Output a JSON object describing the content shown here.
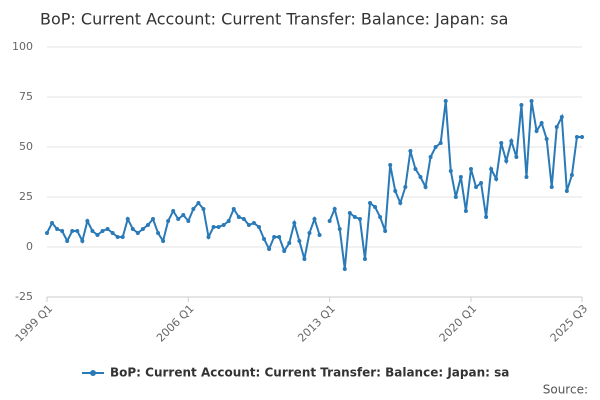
{
  "chart_data": {
    "type": "line",
    "title": "BoP: Current Account: Current Transfer: Balance: Japan: sa",
    "source": "Source:",
    "categories": [
      "1999 Q1",
      null,
      null,
      null,
      null,
      null,
      null,
      null,
      null,
      null,
      null,
      null,
      null,
      null,
      null,
      null,
      null,
      null,
      null,
      null,
      null,
      null,
      null,
      null,
      null,
      null,
      null,
      null,
      "2006 Q1",
      null,
      null,
      null,
      null,
      null,
      null,
      null,
      null,
      null,
      null,
      null,
      null,
      null,
      null,
      null,
      null,
      null,
      null,
      null,
      null,
      null,
      null,
      null,
      null,
      null,
      null,
      null,
      "2013 Q1",
      null,
      null,
      null,
      null,
      null,
      null,
      null,
      null,
      null,
      null,
      null,
      null,
      null,
      null,
      null,
      null,
      null,
      null,
      null,
      null,
      null,
      null,
      null,
      null,
      null,
      null,
      null,
      "2020 Q1",
      null,
      null,
      null,
      null,
      null,
      null,
      null,
      null,
      null,
      null,
      null,
      null,
      null,
      null,
      null,
      null,
      null,
      null,
      null,
      null,
      null,
      "2025 Q3"
    ],
    "series": [
      {
        "name": "BoP: Current Account: Current Transfer: Balance: Japan: sa",
        "color": "#2a7ab8",
        "values": [
          7,
          12,
          9,
          8,
          3,
          8,
          8,
          3,
          13,
          8,
          6,
          8,
          9,
          7,
          5,
          5,
          14,
          9,
          7,
          9,
          11,
          14,
          7,
          3,
          13,
          18,
          14,
          16,
          13,
          19,
          22,
          19,
          5,
          10,
          10,
          11,
          13,
          19,
          15,
          14,
          11,
          12,
          10,
          4,
          -1,
          5,
          5,
          -2,
          2,
          12,
          3,
          -6,
          7,
          14,
          6,
          null,
          13,
          19,
          9,
          -11,
          17,
          15,
          14,
          -6,
          22,
          20,
          15,
          8,
          41,
          28,
          22,
          30,
          48,
          39,
          35,
          30,
          45,
          50,
          52,
          73,
          38,
          25,
          35,
          18,
          39,
          30,
          32,
          15,
          39,
          34,
          52,
          43,
          53,
          45,
          71,
          35,
          73,
          58,
          62,
          54,
          30,
          60,
          65,
          28,
          36,
          55,
          55
        ]
      }
    ],
    "ylim": [
      -25,
      100
    ],
    "yticks": [
      -25,
      0,
      25,
      50,
      75,
      100
    ],
    "grid": true,
    "legend": "bottom"
  }
}
